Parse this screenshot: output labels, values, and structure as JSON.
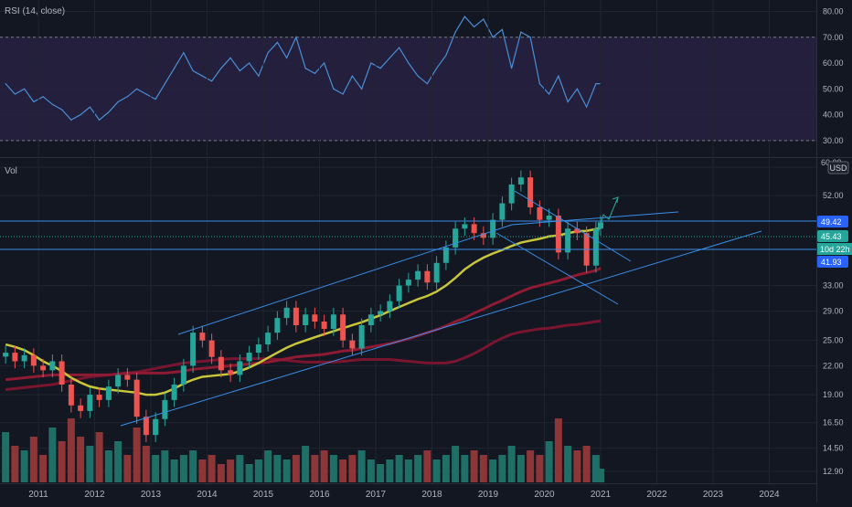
{
  "rsi_pane": {
    "title": "RSI (14, close)",
    "axis_labels": [
      "80.00",
      "70.00",
      "60.00",
      "50.00",
      "40.00",
      "30.00"
    ],
    "overbought": 70,
    "oversold": 30
  },
  "price_pane": {
    "title": "Vol",
    "currency": "USD",
    "axis_labels": [
      "60.00",
      "52.00",
      "33.00",
      "29.00",
      "25.00",
      "22.00",
      "19.00",
      "16.50",
      "14.50",
      "12.90"
    ],
    "axis_top_label": "60.00",
    "price_tags": {
      "level_high": "49.42",
      "last_price": "45.43",
      "countdown": "10d 22h",
      "level_low": "41.93"
    }
  },
  "time_axis": [
    "2011",
    "2012",
    "2013",
    "2014",
    "2015",
    "2016",
    "2017",
    "2018",
    "2019",
    "2020",
    "2021",
    "2022",
    "2023",
    "2024"
  ],
  "colors": {
    "background": "#131722",
    "grid": "#1f2430",
    "up_candle": "#26a69a",
    "down_candle": "#ef5350",
    "up_volume": "#1f6f67",
    "down_volume": "#8c3637",
    "ma_short": "#c8c63a",
    "ma_long_1": "#8e1a33",
    "ma_long_2": "#7a1530",
    "rsi_line": "#4a8fd6",
    "rsi_band": "#2a2346",
    "drawing_lines": "#3a8ee8",
    "axis_text": "#b2b5be",
    "last_price_tag": "#26a69a",
    "level_tag": "#2962ff"
  },
  "chart_data": [
    {
      "type": "line",
      "title": "RSI (14, close)",
      "y_scale": "linear",
      "ylim": [
        25,
        83
      ],
      "grid": true,
      "bands": [
        {
          "from": 30,
          "to": 70
        }
      ],
      "series": [
        {
          "name": "RSI (14, close)",
          "x": [
            "2010-06",
            "2010-08",
            "2010-10",
            "2010-12",
            "2011-02",
            "2011-04",
            "2011-06",
            "2011-08",
            "2011-10",
            "2011-12",
            "2012-02",
            "2012-04",
            "2012-06",
            "2012-08",
            "2012-10",
            "2012-12",
            "2013-02",
            "2013-04",
            "2013-06",
            "2013-08",
            "2013-10",
            "2013-12",
            "2014-02",
            "2014-04",
            "2014-06",
            "2014-08",
            "2014-10",
            "2014-12",
            "2015-02",
            "2015-04",
            "2015-06",
            "2015-08",
            "2015-10",
            "2015-12",
            "2016-02",
            "2016-04",
            "2016-06",
            "2016-08",
            "2016-10",
            "2016-12",
            "2017-02",
            "2017-04",
            "2017-06",
            "2017-08",
            "2017-10",
            "2017-12",
            "2018-02",
            "2018-04",
            "2018-06",
            "2018-08",
            "2018-10",
            "2018-12",
            "2019-02",
            "2019-04",
            "2019-06",
            "2019-08",
            "2019-10",
            "2019-12",
            "2020-02",
            "2020-04",
            "2020-06",
            "2020-08",
            "2020-10",
            "2020-12",
            "2021-01"
          ],
          "values": [
            52,
            48,
            50,
            45,
            47,
            44,
            42,
            38,
            40,
            43,
            38,
            41,
            45,
            47,
            50,
            48,
            46,
            52,
            58,
            64,
            57,
            55,
            53,
            58,
            62,
            57,
            60,
            55,
            64,
            68,
            62,
            70,
            58,
            56,
            60,
            50,
            48,
            55,
            50,
            60,
            58,
            62,
            66,
            60,
            55,
            52,
            58,
            63,
            72,
            78,
            74,
            77,
            70,
            73,
            58,
            72,
            70,
            52,
            48,
            55,
            45,
            50,
            43,
            52,
            52
          ]
        }
      ]
    },
    {
      "type": "candlestick",
      "title": "Vol",
      "y_scale": "log",
      "currency": "USD",
      "ylim": [
        12.2,
        62
      ],
      "grid": true,
      "x": [
        "2010-06",
        "2010-08",
        "2010-10",
        "2010-12",
        "2011-02",
        "2011-04",
        "2011-06",
        "2011-08",
        "2011-10",
        "2011-12",
        "2012-02",
        "2012-04",
        "2012-06",
        "2012-08",
        "2012-10",
        "2012-12",
        "2013-02",
        "2013-04",
        "2013-06",
        "2013-08",
        "2013-10",
        "2013-12",
        "2014-02",
        "2014-04",
        "2014-06",
        "2014-08",
        "2014-10",
        "2014-12",
        "2015-02",
        "2015-04",
        "2015-06",
        "2015-08",
        "2015-10",
        "2015-12",
        "2016-02",
        "2016-04",
        "2016-06",
        "2016-08",
        "2016-10",
        "2016-12",
        "2017-02",
        "2017-04",
        "2017-06",
        "2017-08",
        "2017-10",
        "2017-12",
        "2018-02",
        "2018-04",
        "2018-06",
        "2018-08",
        "2018-10",
        "2018-12",
        "2019-02",
        "2019-04",
        "2019-06",
        "2019-08",
        "2019-10",
        "2019-12",
        "2020-02",
        "2020-04",
        "2020-06",
        "2020-08",
        "2020-10",
        "2020-12",
        "2021-01"
      ],
      "close": [
        23.5,
        22.5,
        23.2,
        22.0,
        21.5,
        22.5,
        20.0,
        18.0,
        17.5,
        19.0,
        18.5,
        19.8,
        21.0,
        20.5,
        17.0,
        15.5,
        16.8,
        18.5,
        20.0,
        22.0,
        26.0,
        25.0,
        23.0,
        21.5,
        21.0,
        22.5,
        23.5,
        24.5,
        26.0,
        28.0,
        29.5,
        27.0,
        28.5,
        27.5,
        26.5,
        28.5,
        25.0,
        24.0,
        27.0,
        28.5,
        29.0,
        30.5,
        33.0,
        34.0,
        35.5,
        33.5,
        37.0,
        40.0,
        44.0,
        45.0,
        43.0,
        42.0,
        46.0,
        50.0,
        55.0,
        57.0,
        49.0,
        46.0,
        47.0,
        39.0,
        44.0,
        43.0,
        36.5,
        44.0,
        45.43
      ],
      "ma_short": [
        24.5,
        24.2,
        23.8,
        23.2,
        22.5,
        22.0,
        21.4,
        20.7,
        20.2,
        19.8,
        19.6,
        19.5,
        19.4,
        19.3,
        19.2,
        19.0,
        19.0,
        19.2,
        19.6,
        20.1,
        20.5,
        20.8,
        20.9,
        21.0,
        21.1,
        21.4,
        21.8,
        22.3,
        22.9,
        23.5,
        24.1,
        24.6,
        25.0,
        25.4,
        25.8,
        26.2,
        26.6,
        27.0,
        27.4,
        27.9,
        28.4,
        29.0,
        29.6,
        30.2,
        30.8,
        31.3,
        32.0,
        33.0,
        34.3,
        35.8,
        37.0,
        38.0,
        38.8,
        39.5,
        40.3,
        41.0,
        41.4,
        41.8,
        42.3,
        42.5,
        43.0,
        43.4,
        43.5,
        43.9,
        44.2
      ],
      "ma_long_1": [
        20.5,
        20.6,
        20.7,
        20.8,
        20.9,
        21.0,
        21.0,
        21.0,
        21.0,
        21.0,
        21.0,
        21.0,
        21.1,
        21.2,
        21.2,
        21.2,
        21.2,
        21.2,
        21.3,
        21.4,
        21.6,
        21.7,
        21.8,
        21.9,
        22.0,
        22.1,
        22.2,
        22.3,
        22.4,
        22.6,
        22.8,
        23.0,
        23.1,
        23.2,
        23.3,
        23.5,
        23.7,
        23.8,
        24.0,
        24.2,
        24.4,
        24.6,
        24.9,
        25.2,
        25.6,
        26.0,
        26.4,
        26.9,
        27.5,
        28.0,
        28.7,
        29.3,
        30.0,
        30.6,
        31.3,
        32.0,
        32.6,
        33.0,
        33.4,
        33.8,
        34.3,
        34.8,
        35.2,
        35.6,
        36.0
      ],
      "ma_long_2": [
        19.5,
        19.6,
        19.7,
        19.8,
        19.9,
        20.0,
        20.2,
        20.4,
        20.6,
        20.8,
        20.9,
        21.0,
        21.1,
        21.2,
        21.3,
        21.5,
        21.7,
        21.9,
        22.1,
        22.3,
        22.4,
        22.5,
        22.6,
        22.7,
        22.8,
        22.8,
        22.8,
        22.8,
        22.8,
        22.7,
        22.6,
        22.5,
        22.4,
        22.4,
        22.4,
        22.4,
        22.5,
        22.6,
        22.7,
        22.7,
        22.7,
        22.7,
        22.6,
        22.5,
        22.4,
        22.3,
        22.3,
        22.3,
        22.5,
        22.9,
        23.4,
        24.0,
        24.7,
        25.3,
        25.8,
        26.1,
        26.3,
        26.5,
        26.6,
        26.8,
        27.0,
        27.1,
        27.3,
        27.5,
        27.6
      ],
      "volume_relative": [
        0.55,
        0.4,
        0.35,
        0.5,
        0.3,
        0.6,
        0.45,
        0.7,
        0.5,
        0.4,
        0.55,
        0.35,
        0.45,
        0.3,
        0.6,
        0.4,
        0.3,
        0.35,
        0.25,
        0.3,
        0.35,
        0.25,
        0.3,
        0.2,
        0.25,
        0.3,
        0.2,
        0.25,
        0.35,
        0.3,
        0.25,
        0.3,
        0.4,
        0.3,
        0.35,
        0.3,
        0.25,
        0.3,
        0.35,
        0.25,
        0.2,
        0.25,
        0.3,
        0.25,
        0.3,
        0.35,
        0.25,
        0.3,
        0.4,
        0.3,
        0.35,
        0.3,
        0.25,
        0.3,
        0.4,
        0.3,
        0.35,
        0.3,
        0.45,
        0.7,
        0.4,
        0.35,
        0.4,
        0.3,
        0.15
      ],
      "price_levels": [
        49.42,
        45.43,
        41.93
      ]
    }
  ]
}
